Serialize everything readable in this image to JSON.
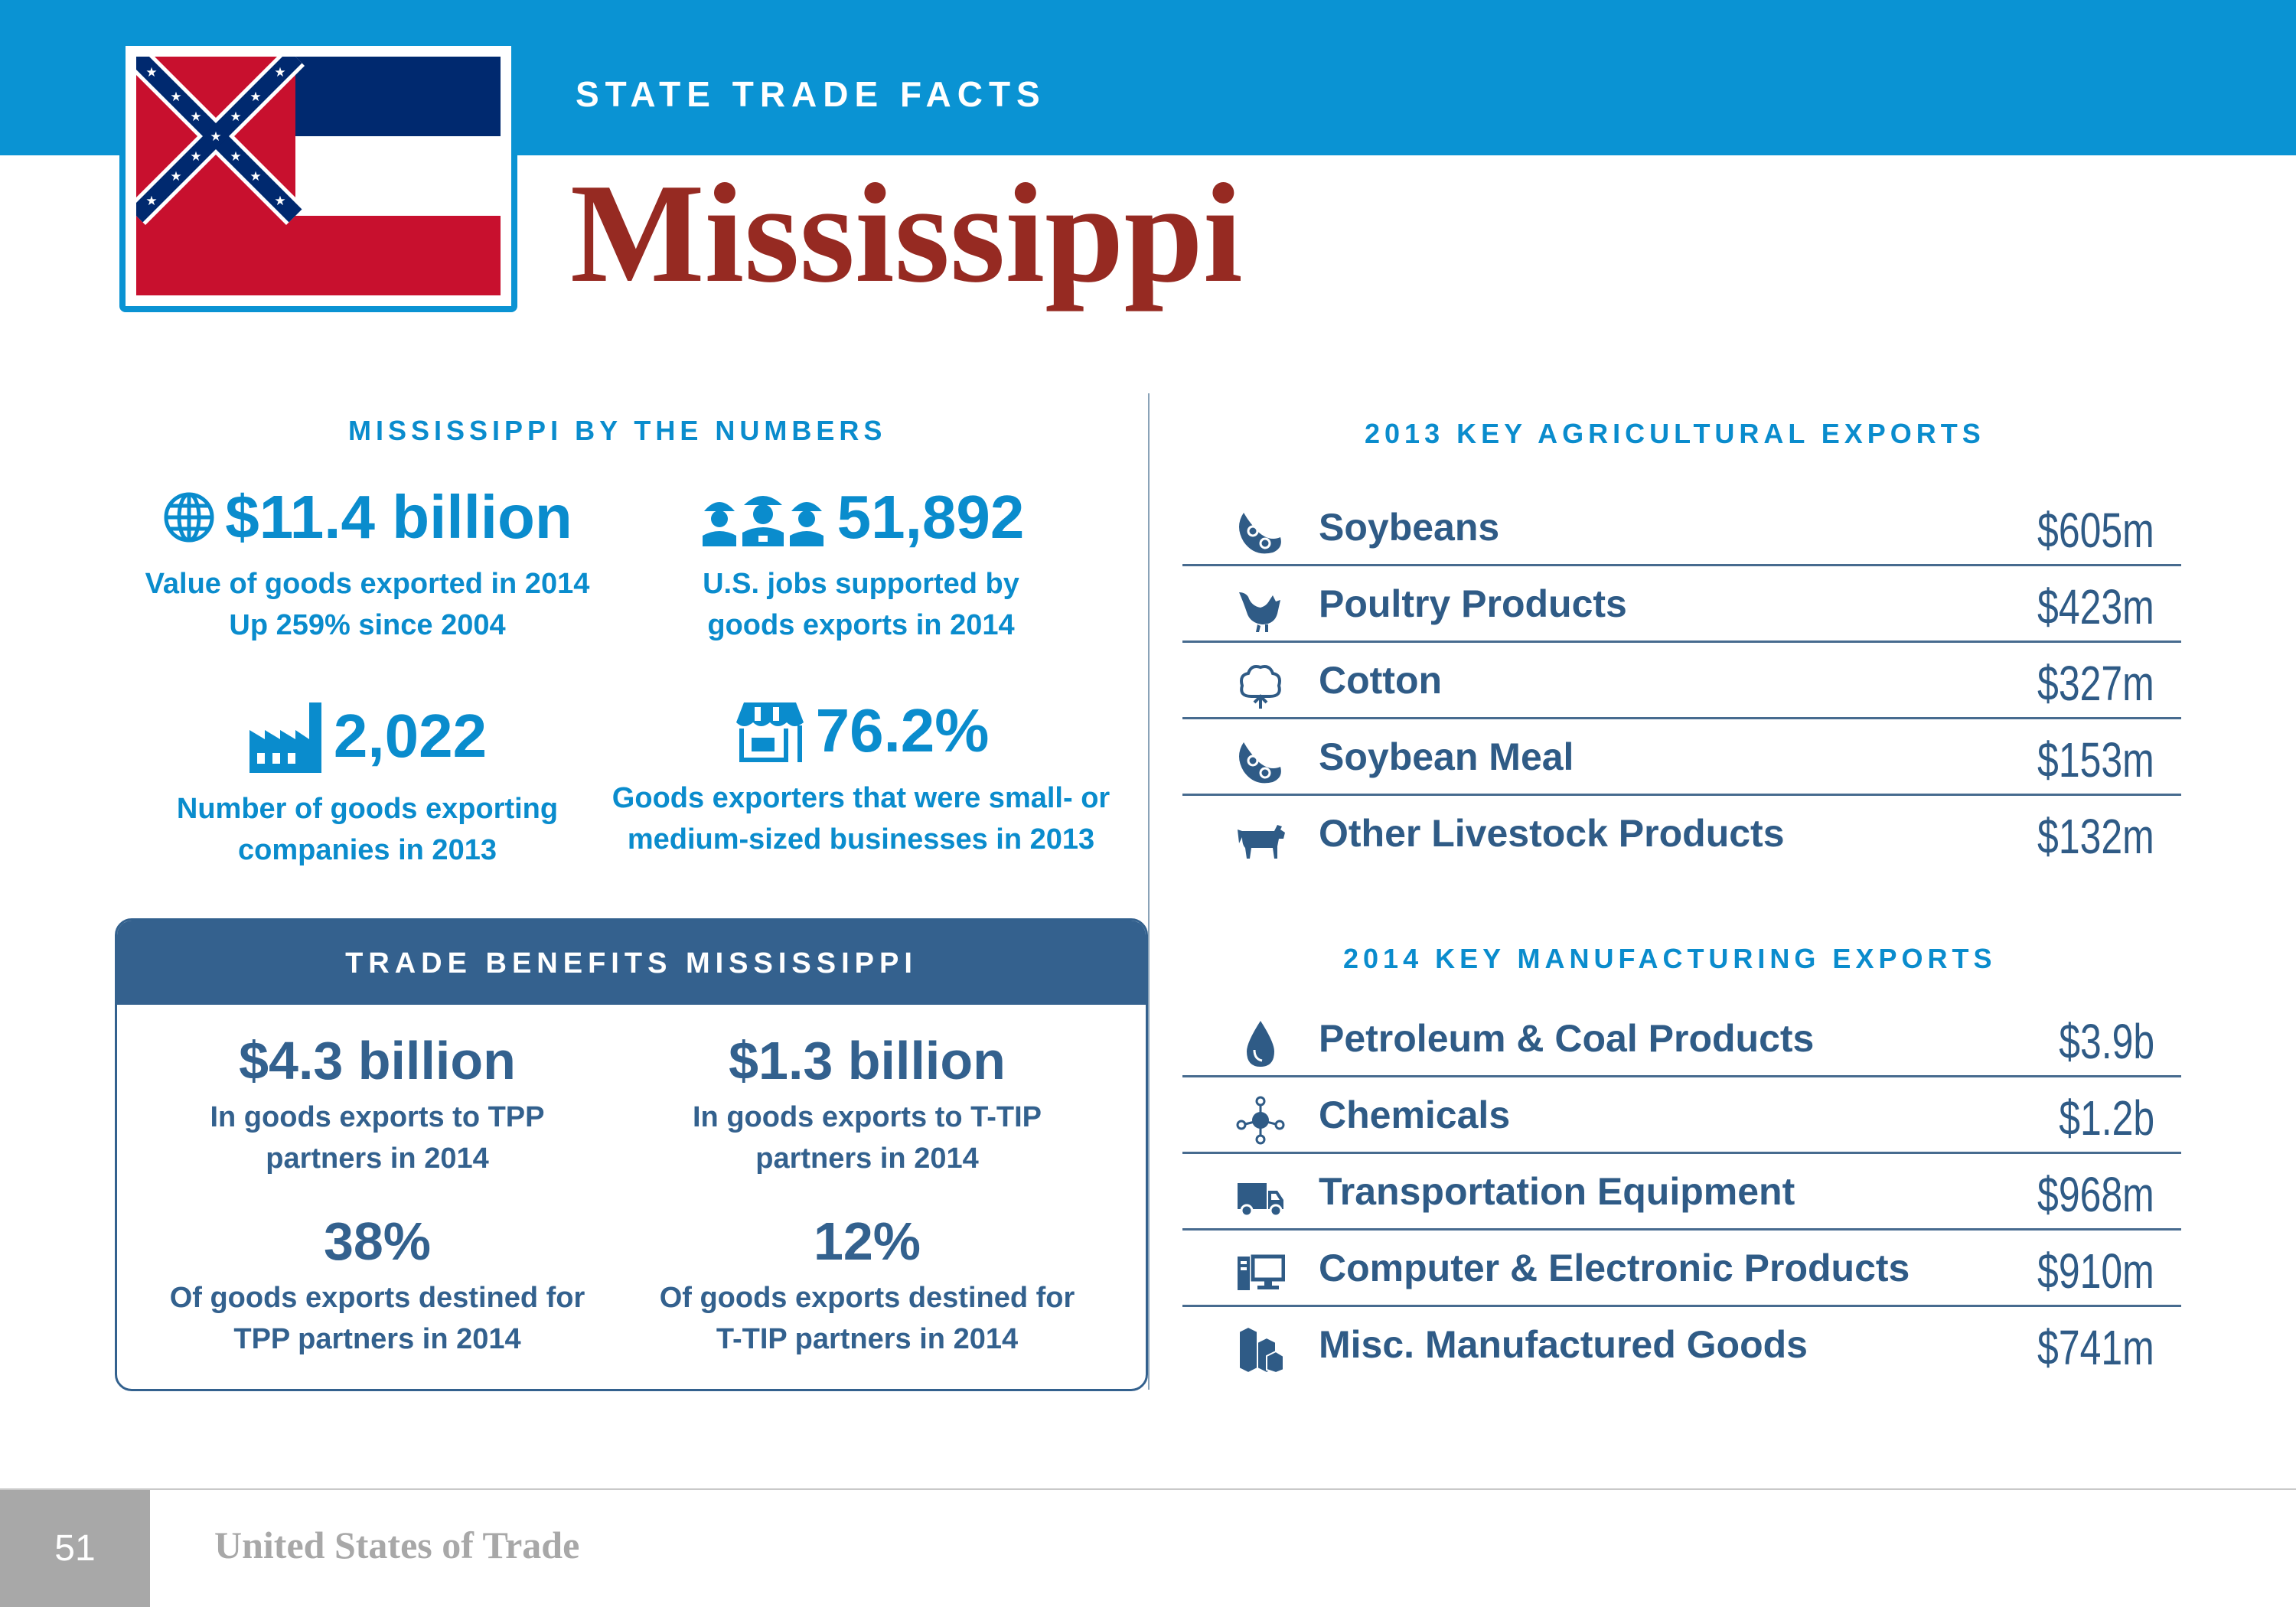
{
  "header": {
    "eyebrow": "STATE TRADE FACTS",
    "state_name": "Mississippi"
  },
  "numbers_section": {
    "heading": "MISSISSIPPI BY THE NUMBERS",
    "stats": [
      {
        "value": "$11.4 billion",
        "line1": "Value of goods exported in 2014",
        "line2": "Up 259% since 2004",
        "icon": "globe-icon"
      },
      {
        "value": "51,892",
        "line1": "U.S. jobs supported by",
        "line2": "goods exports in 2014",
        "icon": "workers-icon"
      },
      {
        "value": "2,022",
        "line1": "Number of goods exporting",
        "line2": "companies in 2013",
        "icon": "factory-icon"
      },
      {
        "value": "76.2%",
        "line1": "Goods exporters that were small- or",
        "line2": "medium-sized businesses in 2013",
        "icon": "storefront-icon"
      }
    ]
  },
  "trade_benefits": {
    "heading": "TRADE BENEFITS MISSISSIPPI",
    "items": [
      {
        "value": "$4.3 billion",
        "line1": "In goods exports to TPP",
        "line2": "partners in 2014"
      },
      {
        "value": "$1.3 billion",
        "line1": "In goods exports to T-TIP",
        "line2": "partners in 2014"
      },
      {
        "value": "38%",
        "line1": "Of goods exports destined for",
        "line2": "TPP partners in 2014"
      },
      {
        "value": "12%",
        "line1": "Of goods exports destined for",
        "line2": "T-TIP partners in 2014"
      }
    ]
  },
  "agricultural": {
    "heading": "2013 KEY AGRICULTURAL EXPORTS",
    "items": [
      {
        "label": "Soybeans",
        "value": "$605m",
        "icon": "soybean-icon"
      },
      {
        "label": "Poultry Products",
        "value": "$423m",
        "icon": "chicken-icon"
      },
      {
        "label": "Cotton",
        "value": "$327m",
        "icon": "cotton-icon"
      },
      {
        "label": "Soybean Meal",
        "value": "$153m",
        "icon": "soybean-icon"
      },
      {
        "label": "Other Livestock Products",
        "value": "$132m",
        "icon": "cow-icon"
      }
    ]
  },
  "manufacturing": {
    "heading": "2014 KEY MANUFACTURING EXPORTS",
    "items": [
      {
        "label": "Petroleum & Coal Products",
        "value": "$3.9b",
        "icon": "oil-drop-icon"
      },
      {
        "label": "Chemicals",
        "value": "$1.2b",
        "icon": "molecule-icon"
      },
      {
        "label": "Transportation Equipment",
        "value": "$968m",
        "icon": "truck-icon"
      },
      {
        "label": "Computer & Electronic Products",
        "value": "$910m",
        "icon": "computer-icon"
      },
      {
        "label": "Misc. Manufactured Goods",
        "value": "$741m",
        "icon": "boxes-icon"
      }
    ]
  },
  "footer": {
    "page_number": "51",
    "publication": "United States of Trade"
  },
  "colors": {
    "header_blue": "#0a93d3",
    "title_red": "#962a22",
    "navy": "#34618e",
    "accent_blue": "#0a8ccd"
  }
}
